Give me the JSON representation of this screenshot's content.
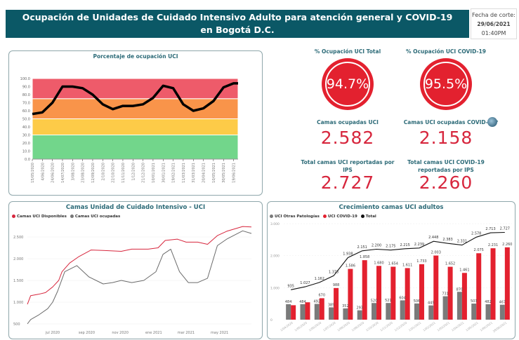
{
  "header": {
    "title_line1": "Ocupación de Unidades de Cuidado Intensivo Adulto para atención general y COVID-19",
    "title_line2": "en Bogotá D.C.",
    "cutoff_label": "Fecha de corte:",
    "cutoff_date": "29/06/2021",
    "cutoff_time": "01:40PM"
  },
  "kpis": {
    "occ_total_title": "% Ocupación UCI Total",
    "occ_total_value": "94.7%",
    "occ_covid_title": "% Ocupación UCI COVID-19",
    "occ_covid_value": "95.5%",
    "beds_occupied_title": "Camas ocupadas UCI",
    "beds_occupied_value": "2.582",
    "beds_covid_occupied_title": "Camas UCI ocupadas COVID-19*",
    "beds_covid_occupied_value": "2.158",
    "total_beds_title": "Total camas UCI reportadas por IPS",
    "total_beds_value": "2.727",
    "total_covid_beds_title": "Total camas UCI COVID-19 reportadas por IPS",
    "total_covid_beds_value": "2.260",
    "accent": "#e3212f",
    "info_icon": "globe-icon"
  },
  "chart_data": [
    {
      "type": "line",
      "title": "Porcentaje de ocupación UCI",
      "ylim": [
        0,
        100
      ],
      "yticks": [
        "0.0",
        "10.0",
        "20.0",
        "30.0",
        "40.0",
        "50.0",
        "60.0",
        "70.0",
        "80.0",
        "90.0",
        "100.0"
      ],
      "xticks": [
        "15/05/2020",
        "4/06/2020",
        "24/06/2020",
        "14/07/2020",
        "3/08/2020",
        "23/08/2020",
        "12/09/2020",
        "2/10/2020",
        "22/10/2020",
        "11/11/2020",
        "1/12/2020",
        "21/12/2020",
        "10/01/2021",
        "30/01/2021",
        "19/02/2021",
        "11/03/2021",
        "31/03/2021",
        "20/04/2021",
        "10/05/2021",
        "30/05/2021",
        "19/06/2021"
      ],
      "bands": [
        {
          "from": 0,
          "to": 30,
          "color": "#72d68b"
        },
        {
          "from": 30,
          "to": 50,
          "color": "#fdcb48"
        },
        {
          "from": 50,
          "to": 75,
          "color": "#f9944a"
        },
        {
          "from": 75,
          "to": 100,
          "color": "#ee5b6a"
        }
      ],
      "x": [
        "2020-05-15",
        "2020-06-04",
        "2020-06-24",
        "2020-07-10",
        "2020-07-14",
        "2020-08-03",
        "2020-08-23",
        "2020-09-12",
        "2020-10-02",
        "2020-10-22",
        "2020-11-11",
        "2020-12-01",
        "2020-12-21",
        "2021-01-10",
        "2021-01-30",
        "2021-02-19",
        "2021-03-11",
        "2021-03-31",
        "2021-04-20",
        "2021-05-10",
        "2021-05-30",
        "2021-06-19",
        "2021-06-28"
      ],
      "values": [
        56,
        58,
        70,
        86,
        90,
        90,
        88,
        80,
        68,
        62,
        66,
        66,
        68,
        76,
        91,
        88,
        68,
        60,
        63,
        72,
        89,
        94,
        94
      ],
      "line_color": "#000000"
    },
    {
      "type": "line",
      "title": "Camas Unidad de Cuidado Intensivo - UCI",
      "ylim": [
        500,
        2800
      ],
      "yticks": [
        "500",
        "1.000",
        "1.500",
        "2.000",
        "2.500"
      ],
      "xticks": [
        "jul 2020",
        "sep 2020",
        "nov 2020",
        "ene 2021",
        "mar 2021",
        "may 2021"
      ],
      "legend": "top-left",
      "series": [
        {
          "name": "Camas UCI Disponibles",
          "color": "#d7263d",
          "x": [
            "2020-05-16",
            "2020-05-22",
            "2020-06-05",
            "2020-06-18",
            "2020-07-01",
            "2020-07-12",
            "2020-07-18",
            "2020-08-01",
            "2020-08-18",
            "2020-09-09",
            "2020-10-01",
            "2020-11-03",
            "2020-11-22",
            "2020-12-22",
            "2021-01-09",
            "2021-01-22",
            "2021-02-13",
            "2021-03-01",
            "2021-03-22",
            "2021-04-09",
            "2021-04-27",
            "2021-05-14",
            "2021-06-12",
            "2021-06-28"
          ],
          "values": [
            950,
            1150,
            1180,
            1220,
            1350,
            1500,
            1700,
            1900,
            2050,
            2200,
            2190,
            2170,
            2220,
            2220,
            2250,
            2420,
            2450,
            2380,
            2380,
            2330,
            2530,
            2630,
            2740,
            2730
          ]
        },
        {
          "name": "Camas UCI ocupadas",
          "color": "#6b6b6b",
          "x": [
            "2020-05-16",
            "2020-05-22",
            "2020-06-05",
            "2020-06-22",
            "2020-07-01",
            "2020-07-10",
            "2020-07-23",
            "2020-08-14",
            "2020-09-05",
            "2020-10-01",
            "2020-10-18",
            "2020-11-03",
            "2020-11-22",
            "2020-12-14",
            "2021-01-05",
            "2021-01-18",
            "2021-02-01",
            "2021-02-17",
            "2021-03-05",
            "2021-03-22",
            "2021-04-09",
            "2021-04-27",
            "2021-05-14",
            "2021-06-12",
            "2021-06-28"
          ],
          "values": [
            500,
            600,
            700,
            850,
            1000,
            1250,
            1700,
            1840,
            1580,
            1420,
            1450,
            1500,
            1450,
            1500,
            1700,
            2100,
            2220,
            1700,
            1450,
            1450,
            1550,
            2300,
            2450,
            2640,
            2580
          ]
        }
      ]
    },
    {
      "type": "bar",
      "title": "Crecimiento camas UCI adultos",
      "ylim": [
        0,
        3000
      ],
      "yticks": [
        "0",
        "1.000",
        "2.000",
        "3.000"
      ],
      "legend": "top-left",
      "categories": [
        "1/04/2020",
        "1/05/2020",
        "1/06/2020",
        "1/07/2020",
        "1/08/2020",
        "1/09/2020",
        "1/10/2020",
        "1/11/2020",
        "1/12/2020",
        "1/01/2021",
        "1/02/2021",
        "1/03/2021",
        "1/04/2021",
        "1/05/2021",
        "1/06/2021",
        "28/06/2021"
      ],
      "series": [
        {
          "name": "UCI Otras Patologías",
          "color": "#7a7a7a",
          "type": "bar",
          "values": [
            484,
            484,
            492,
            385,
            352,
            293,
            520,
            521,
            604,
            506,
            445,
            731,
            870,
            503,
            482,
            467
          ],
          "labels": [
            "484",
            "484",
            "492",
            "385",
            "352",
            "293",
            "520",
            "521",
            "604",
            "506",
            "445",
            "731",
            "870",
            "503",
            "482",
            "467"
          ]
        },
        {
          "name": "UCI COVID-19",
          "color": "#e3212f",
          "type": "bar",
          "values": [
            451,
            543,
            670,
            988,
            1586,
            1858,
            1680,
            1654,
            1611,
            1733,
            2003,
            1652,
            1461,
            2075,
            2231,
            2260
          ],
          "labels": [
            "",
            "",
            "670",
            "988",
            "1.586",
            "1.858",
            "1.680",
            "1.654",
            "1.611",
            "1.733",
            "2.003",
            "1.652",
            "1.461",
            "2.075",
            "2.231",
            "2.260"
          ]
        },
        {
          "name": "Total",
          "color": "#111111",
          "type": "line",
          "values": [
            935,
            1027,
            1162,
            1373,
            1938,
            2151,
            2200,
            2175,
            2215,
            2239,
            2448,
            2383,
            2331,
            2578,
            2713,
            2727
          ],
          "labels": [
            "935",
            "1.027",
            "1.162",
            "1.373",
            "1.938",
            "2.151",
            "2.200",
            "2.175",
            "2.215",
            "2.239",
            "2.448",
            "2.383",
            "2.331",
            "2.578",
            "2.713",
            "2.727"
          ]
        }
      ]
    }
  ]
}
